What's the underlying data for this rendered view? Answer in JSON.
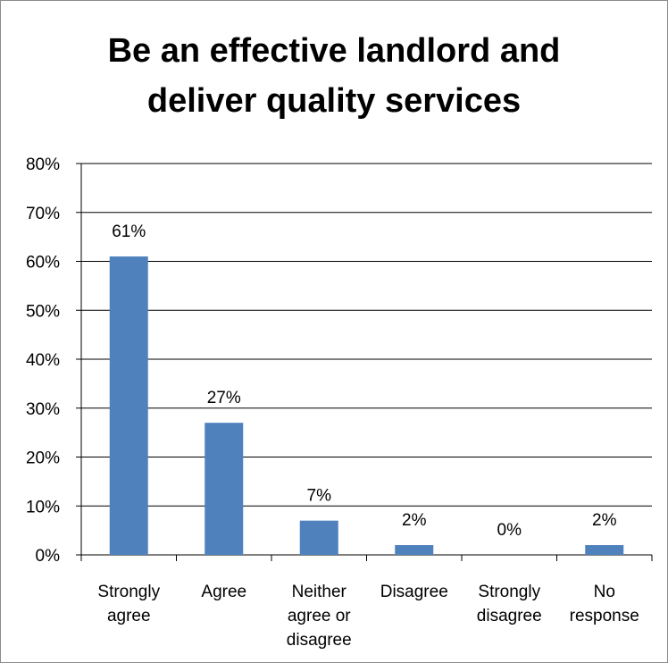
{
  "chart_data": {
    "type": "bar",
    "title_lines": [
      "Be an effective landlord and",
      "deliver quality services"
    ],
    "categories": [
      [
        "Strongly",
        "agree"
      ],
      [
        "Agree"
      ],
      [
        "Neither",
        "agree or",
        "disagree"
      ],
      [
        "Disagree"
      ],
      [
        "Strongly",
        "disagree"
      ],
      [
        "No",
        "response"
      ]
    ],
    "values": [
      61,
      27,
      7,
      2,
      0,
      2
    ],
    "data_labels": [
      "61%",
      "27%",
      "7%",
      "2%",
      "0%",
      "2%"
    ],
    "y_ticks": [
      0,
      10,
      20,
      30,
      40,
      50,
      60,
      70,
      80
    ],
    "y_tick_labels": [
      "0%",
      "10%",
      "20%",
      "30%",
      "40%",
      "50%",
      "60%",
      "70%",
      "80%"
    ],
    "ylim": [
      0,
      80
    ],
    "xlabel": "",
    "ylabel": "",
    "grid": true,
    "legend": "none",
    "bar_color": "#4f81bd"
  }
}
